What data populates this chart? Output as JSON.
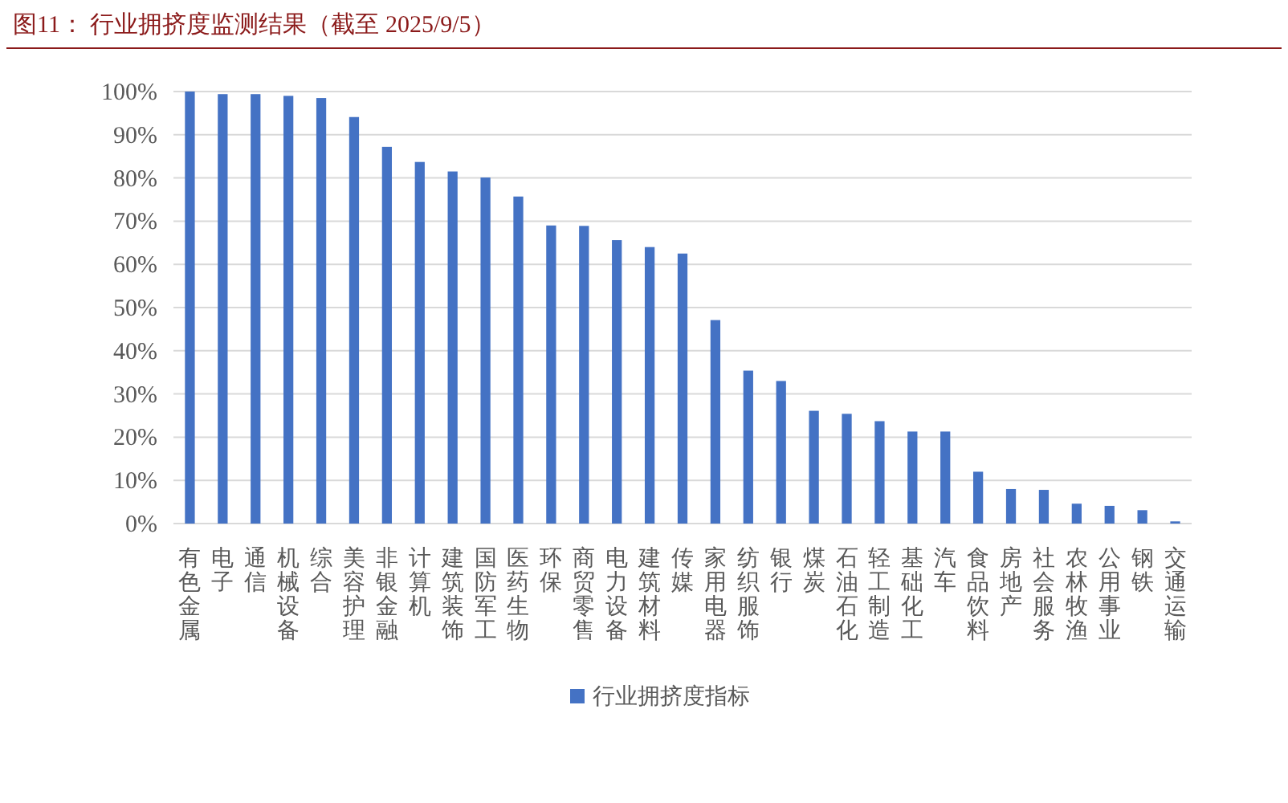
{
  "chart_data": {
    "type": "bar",
    "title": "图11：  行业拥挤度监测结果（截至 2025/9/5）",
    "categories": [
      "有色金属",
      "电子",
      "通信",
      "机械设备",
      "综合",
      "美容护理",
      "非银金融",
      "计算机",
      "建筑装饰",
      "国防军工",
      "医药生物",
      "环保",
      "商贸零售",
      "电力设备",
      "建筑材料",
      "传媒",
      "家用电器",
      "纺织服饰",
      "银行",
      "煤炭",
      "石油石化",
      "轻工制造",
      "基础化工",
      "汽车",
      "食品饮料",
      "房地产",
      "社会服务",
      "农林牧渔",
      "公用事业",
      "钢铁",
      "交通运输"
    ],
    "series": [
      {
        "name": "行业拥挤度指标",
        "color": "#4472c4",
        "values": [
          100,
          99.4,
          99.4,
          99.0,
          98.5,
          94.1,
          87.2,
          83.7,
          81.5,
          80.1,
          75.7,
          69.0,
          68.9,
          65.6,
          64.0,
          62.5,
          47.1,
          35.4,
          33.0,
          26.1,
          25.4,
          23.7,
          21.3,
          21.3,
          12.0,
          8.0,
          7.8,
          4.6,
          4.1,
          3.1,
          0.5
        ]
      }
    ],
    "ylim": [
      0,
      100
    ],
    "yticks": [
      {
        "value": 0,
        "label": "0%"
      },
      {
        "value": 10,
        "label": "10%"
      },
      {
        "value": 20,
        "label": "20%"
      },
      {
        "value": 30,
        "label": "30%"
      },
      {
        "value": 40,
        "label": "40%"
      },
      {
        "value": 50,
        "label": "50%"
      },
      {
        "value": 60,
        "label": "60%"
      },
      {
        "value": 70,
        "label": "70%"
      },
      {
        "value": 80,
        "label": "80%"
      },
      {
        "value": 90,
        "label": "90%"
      },
      {
        "value": 100,
        "label": "100%"
      }
    ],
    "grid": "y",
    "legend": "bottom"
  }
}
